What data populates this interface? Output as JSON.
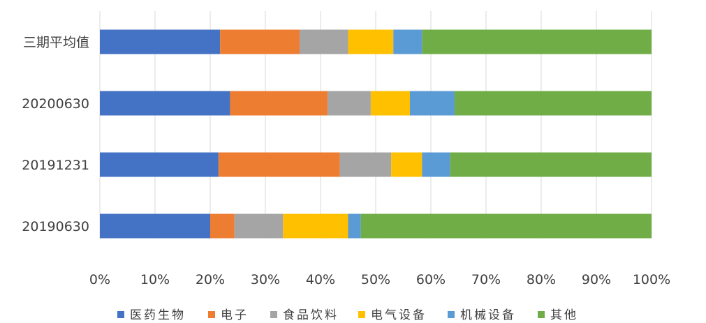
{
  "chart_data": {
    "type": "bar",
    "orientation": "horizontal",
    "stacked": "percent",
    "categories": [
      "三期平均值",
      "20200630",
      "20191231",
      "20190630"
    ],
    "series": [
      {
        "name": "医药生物",
        "color": "#4472c4",
        "values": [
          21.8,
          23.6,
          21.5,
          20.0
        ]
      },
      {
        "name": "电子",
        "color": "#ed7d31",
        "values": [
          14.4,
          17.7,
          22.0,
          4.4
        ]
      },
      {
        "name": "食品饮料",
        "color": "#a5a5a5",
        "values": [
          8.8,
          7.8,
          9.3,
          8.8
        ]
      },
      {
        "name": "电气设备",
        "color": "#ffc000",
        "values": [
          8.2,
          7.1,
          5.6,
          11.8
        ]
      },
      {
        "name": "机械设备",
        "color": "#5b9bd5",
        "values": [
          5.2,
          8.1,
          5.1,
          2.3
        ]
      },
      {
        "name": "其他",
        "color": "#70ad47",
        "values": [
          41.6,
          35.7,
          36.5,
          52.7
        ]
      }
    ],
    "xlim": [
      0,
      100
    ],
    "xticks": [
      "0%",
      "10%",
      "20%",
      "30%",
      "40%",
      "50%",
      "60%",
      "70%",
      "80%",
      "90%",
      "100%"
    ],
    "grid": "vertical",
    "legend_position": "bottom"
  }
}
